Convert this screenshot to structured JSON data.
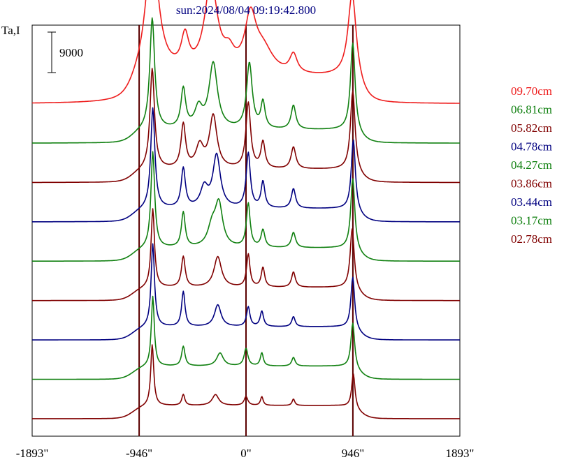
{
  "chart_data": {
    "type": "line",
    "title": "sun:2024/08/04 09:19:42.800",
    "ylabel": "Ta,I",
    "scale_bar_label": "9000",
    "xlim": [
      -1893,
      1893
    ],
    "x_ticks": [
      {
        "value": -1893,
        "label": "-1893\""
      },
      {
        "value": -946,
        "label": "-946\""
      },
      {
        "value": 0,
        "label": "0\""
      },
      {
        "value": 946,
        "label": "946\""
      },
      {
        "value": 1893,
        "label": "1893\""
      }
    ],
    "vertical_markers": [
      -946,
      0,
      946
    ],
    "curve_params": {
      "note_free": true
    },
    "series": [
      {
        "name": "09.70cm",
        "color": "#ee1c1c",
        "baseline": 18000,
        "peaks": [
          [
            -840,
            45,
            4500
          ],
          [
            -830,
            70,
            26000
          ],
          [
            -540,
            40,
            7500
          ],
          [
            -310,
            70,
            20500
          ],
          [
            -150,
            55,
            3500
          ],
          [
            40,
            60,
            12000
          ],
          [
            150,
            110,
            5500
          ],
          [
            420,
            40,
            4300
          ],
          [
            940,
            45,
            20000
          ]
        ]
      },
      {
        "name": "06.81cm",
        "color": "#108010",
        "baseline": 9000,
        "peaks": [
          [
            -830,
            26,
            25500
          ],
          [
            -555,
            25,
            9000
          ],
          [
            -420,
            40,
            4500
          ],
          [
            -290,
            45,
            15000
          ],
          [
            30,
            30,
            15000
          ],
          [
            150,
            22,
            6000
          ],
          [
            420,
            25,
            5500
          ],
          [
            945,
            25,
            20500
          ]
        ]
      },
      {
        "name": "05.82cm",
        "color": "#800000",
        "baseline": 0,
        "peaks": [
          [
            -830,
            24,
            23000
          ],
          [
            -555,
            24,
            10000
          ],
          [
            -410,
            40,
            5000
          ],
          [
            -290,
            40,
            12000
          ],
          [
            20,
            25,
            15000
          ],
          [
            150,
            22,
            6000
          ],
          [
            420,
            25,
            5000
          ],
          [
            945,
            25,
            18500
          ]
        ]
      },
      {
        "name": "04.78cm",
        "color": "#000080",
        "baseline": -9000,
        "peaks": [
          [
            -825,
            22,
            23000
          ],
          [
            -555,
            22,
            9000
          ],
          [
            -370,
            40,
            4500
          ],
          [
            -260,
            40,
            12000
          ],
          [
            20,
            22,
            12500
          ],
          [
            150,
            20,
            6000
          ],
          [
            420,
            22,
            4500
          ],
          [
            950,
            22,
            16500
          ]
        ]
      },
      {
        "name": "04.27cm",
        "color": "#108010",
        "baseline": -18000,
        "peaks": [
          [
            -825,
            20,
            22000
          ],
          [
            -555,
            20,
            8000
          ],
          [
            -300,
            45,
            4500
          ],
          [
            -240,
            40,
            9500
          ],
          [
            20,
            20,
            10000
          ],
          [
            150,
            20,
            4000
          ],
          [
            420,
            22,
            3500
          ],
          [
            945,
            22,
            16500
          ]
        ]
      },
      {
        "name": "03.86cm",
        "color": "#800000",
        "baseline": -27000,
        "peaks": [
          [
            -825,
            18,
            18000
          ],
          [
            -555,
            20,
            7000
          ],
          [
            -250,
            40,
            7000
          ],
          [
            20,
            18,
            7500
          ],
          [
            150,
            18,
            4500
          ],
          [
            420,
            20,
            3500
          ],
          [
            940,
            22,
            14000
          ]
        ]
      },
      {
        "name": "03.44cm",
        "color": "#000080",
        "baseline": -36000,
        "peaks": [
          [
            -825,
            18,
            19000
          ],
          [
            -555,
            18,
            8000
          ],
          [
            -250,
            35,
            5000
          ],
          [
            20,
            18,
            4500
          ],
          [
            140,
            18,
            3500
          ],
          [
            420,
            18,
            2300
          ],
          [
            945,
            20,
            12000
          ]
        ]
      },
      {
        "name": "03.17cm",
        "color": "#108010",
        "baseline": -45000,
        "peaks": [
          [
            -825,
            16,
            16000
          ],
          [
            -555,
            18,
            4500
          ],
          [
            -230,
            35,
            3000
          ],
          [
            0,
            20,
            4000
          ],
          [
            140,
            16,
            3000
          ],
          [
            420,
            18,
            2000
          ],
          [
            945,
            20,
            10500
          ]
        ]
      },
      {
        "name": "02.78cm",
        "color": "#800000",
        "baseline": -54000,
        "peaks": [
          [
            -830,
            16,
            14000
          ],
          [
            -555,
            16,
            2500
          ],
          [
            -270,
            35,
            2500
          ],
          [
            0,
            20,
            2000
          ],
          [
            140,
            14,
            2000
          ],
          [
            420,
            14,
            1500
          ],
          [
            950,
            18,
            8000
          ]
        ]
      }
    ],
    "ylim": [
      -58000,
      36000
    ],
    "grid": false,
    "legend_position": "right"
  }
}
